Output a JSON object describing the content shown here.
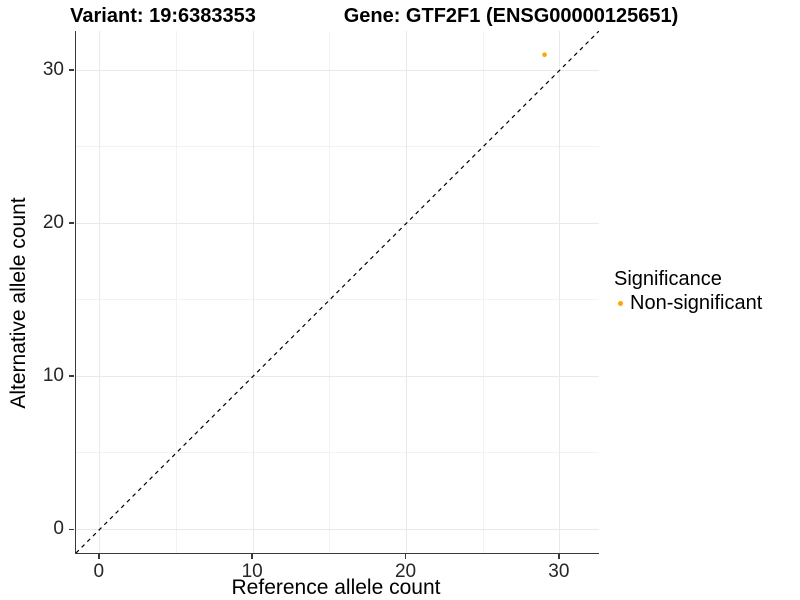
{
  "titles": {
    "variant": "Variant: 19:6383353",
    "gene": "Gene: GTF2F1 (ENSG00000125651)"
  },
  "chart_data": {
    "type": "scatter",
    "xlabel": "Reference allele count",
    "ylabel": "Alternative allele count",
    "xlim": [
      -1.55,
      32.55
    ],
    "ylim": [
      -1.55,
      32.55
    ],
    "x_major_ticks": [
      0,
      10,
      20,
      30
    ],
    "x_minor_ticks": [
      5,
      15,
      25
    ],
    "y_major_ticks": [
      0,
      10,
      20,
      30
    ],
    "y_minor_ticks": [
      5,
      15,
      25
    ],
    "grid": "on",
    "points": [
      {
        "x": 29,
        "y": 31,
        "series": "Non-significant"
      }
    ],
    "identity_line": {
      "present": true,
      "style": "dashed",
      "color": "#000000"
    },
    "legend": {
      "title": "Significance",
      "position": "right",
      "entries": [
        {
          "label": "Non-significant",
          "color": "#FFA500"
        }
      ]
    }
  },
  "colors": {
    "point": "#FFA500",
    "grid_major": "#e9e9e9",
    "grid_minor": "#f2f2f2",
    "axis_line": "#3a3a3a",
    "tick_text": "#262626"
  }
}
